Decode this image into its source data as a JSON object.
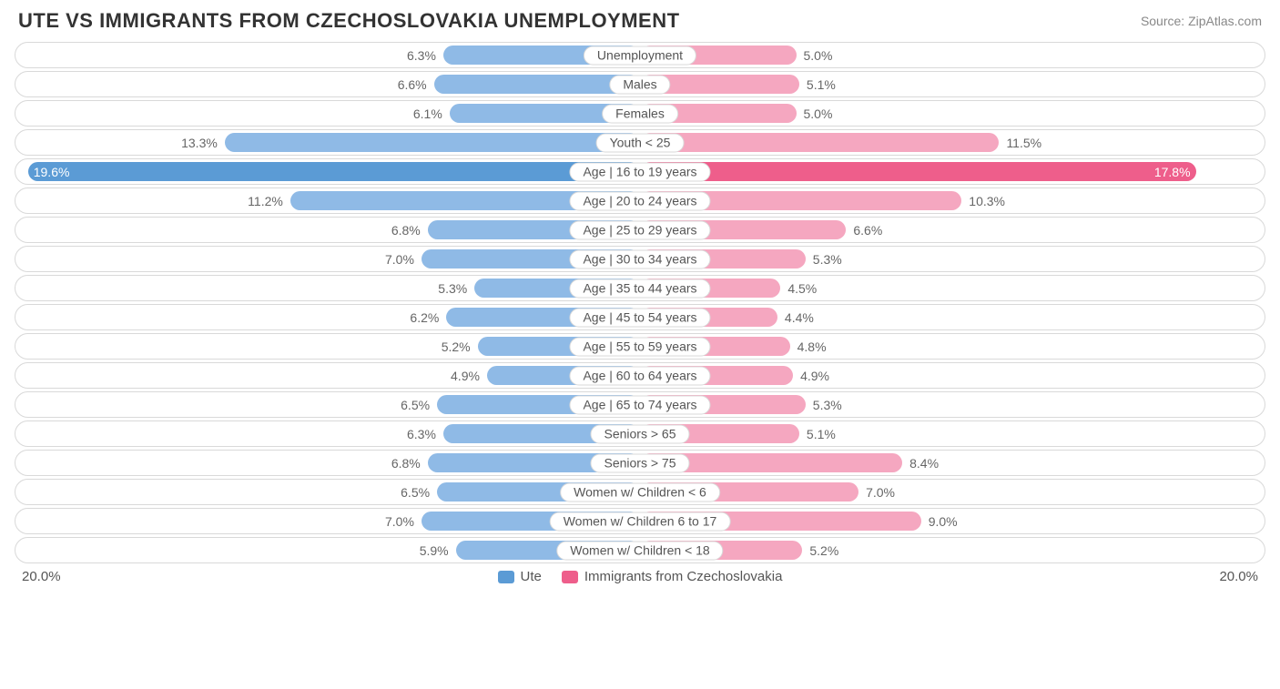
{
  "title": "UTE VS IMMIGRANTS FROM CZECHOSLOVAKIA UNEMPLOYMENT",
  "source": "Source: ZipAtlas.com",
  "chart": {
    "type": "diverging-bar",
    "max_value": 20.0,
    "row_border_color": "#d9d9d9",
    "row_background": "#ffffff",
    "value_text_color": "#666666",
    "category_text_color": "#555555",
    "left": {
      "label": "Ute",
      "axis_label": "20.0%",
      "color_normal": "#8fbae6",
      "color_highlight": "#5b9bd5"
    },
    "right": {
      "label": "Immigrants from Czechoslovakia",
      "axis_label": "20.0%",
      "color_normal": "#f5a7c0",
      "color_highlight": "#ee5e8b"
    },
    "rows": [
      {
        "category": "Unemployment",
        "left_pct": "6.3%",
        "left_val": 6.3,
        "right_pct": "5.0%",
        "right_val": 5.0,
        "highlight": false
      },
      {
        "category": "Males",
        "left_pct": "6.6%",
        "left_val": 6.6,
        "right_pct": "5.1%",
        "right_val": 5.1,
        "highlight": false
      },
      {
        "category": "Females",
        "left_pct": "6.1%",
        "left_val": 6.1,
        "right_pct": "5.0%",
        "right_val": 5.0,
        "highlight": false
      },
      {
        "category": "Youth < 25",
        "left_pct": "13.3%",
        "left_val": 13.3,
        "right_pct": "11.5%",
        "right_val": 11.5,
        "highlight": false
      },
      {
        "category": "Age | 16 to 19 years",
        "left_pct": "19.6%",
        "left_val": 19.6,
        "right_pct": "17.8%",
        "right_val": 17.8,
        "highlight": true,
        "label_inside": true
      },
      {
        "category": "Age | 20 to 24 years",
        "left_pct": "11.2%",
        "left_val": 11.2,
        "right_pct": "10.3%",
        "right_val": 10.3,
        "highlight": false
      },
      {
        "category": "Age | 25 to 29 years",
        "left_pct": "6.8%",
        "left_val": 6.8,
        "right_pct": "6.6%",
        "right_val": 6.6,
        "highlight": false
      },
      {
        "category": "Age | 30 to 34 years",
        "left_pct": "7.0%",
        "left_val": 7.0,
        "right_pct": "5.3%",
        "right_val": 5.3,
        "highlight": false
      },
      {
        "category": "Age | 35 to 44 years",
        "left_pct": "5.3%",
        "left_val": 5.3,
        "right_pct": "4.5%",
        "right_val": 4.5,
        "highlight": false
      },
      {
        "category": "Age | 45 to 54 years",
        "left_pct": "6.2%",
        "left_val": 6.2,
        "right_pct": "4.4%",
        "right_val": 4.4,
        "highlight": false
      },
      {
        "category": "Age | 55 to 59 years",
        "left_pct": "5.2%",
        "left_val": 5.2,
        "right_pct": "4.8%",
        "right_val": 4.8,
        "highlight": false
      },
      {
        "category": "Age | 60 to 64 years",
        "left_pct": "4.9%",
        "left_val": 4.9,
        "right_pct": "4.9%",
        "right_val": 4.9,
        "highlight": false
      },
      {
        "category": "Age | 65 to 74 years",
        "left_pct": "6.5%",
        "left_val": 6.5,
        "right_pct": "5.3%",
        "right_val": 5.3,
        "highlight": false
      },
      {
        "category": "Seniors > 65",
        "left_pct": "6.3%",
        "left_val": 6.3,
        "right_pct": "5.1%",
        "right_val": 5.1,
        "highlight": false
      },
      {
        "category": "Seniors > 75",
        "left_pct": "6.8%",
        "left_val": 6.8,
        "right_pct": "8.4%",
        "right_val": 8.4,
        "highlight": false
      },
      {
        "category": "Women w/ Children < 6",
        "left_pct": "6.5%",
        "left_val": 6.5,
        "right_pct": "7.0%",
        "right_val": 7.0,
        "highlight": false
      },
      {
        "category": "Women w/ Children 6 to 17",
        "left_pct": "7.0%",
        "left_val": 7.0,
        "right_pct": "9.0%",
        "right_val": 9.0,
        "highlight": false
      },
      {
        "category": "Women w/ Children < 18",
        "left_pct": "5.9%",
        "left_val": 5.9,
        "right_pct": "5.2%",
        "right_val": 5.2,
        "highlight": false
      }
    ]
  }
}
